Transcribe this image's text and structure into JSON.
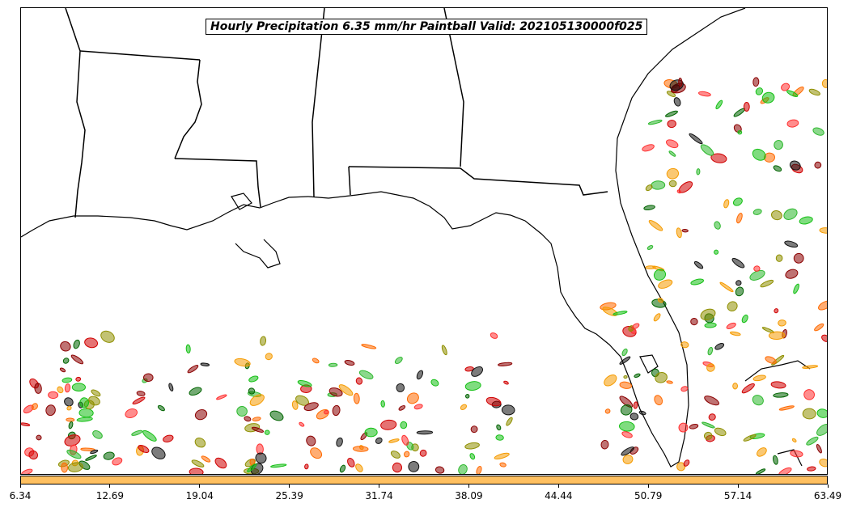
{
  "title": "Hourly Precipitation 6.35 mm/hr Paintball Valid: 202105130000f025",
  "colorbar": {
    "color": "#ffc060",
    "ticks": [
      "6.34",
      "12.69",
      "19.04",
      "25.39",
      "31.74",
      "38.09",
      "44.44",
      "50.79",
      "57.14",
      "63.49"
    ]
  },
  "ensemble_colors": [
    "#d00000",
    "#8b0000",
    "#ff6a00",
    "#f59b00",
    "#2db82d",
    "#15c015",
    "#006400",
    "#8f8f00",
    "#111111",
    "#ff3030"
  ]
}
